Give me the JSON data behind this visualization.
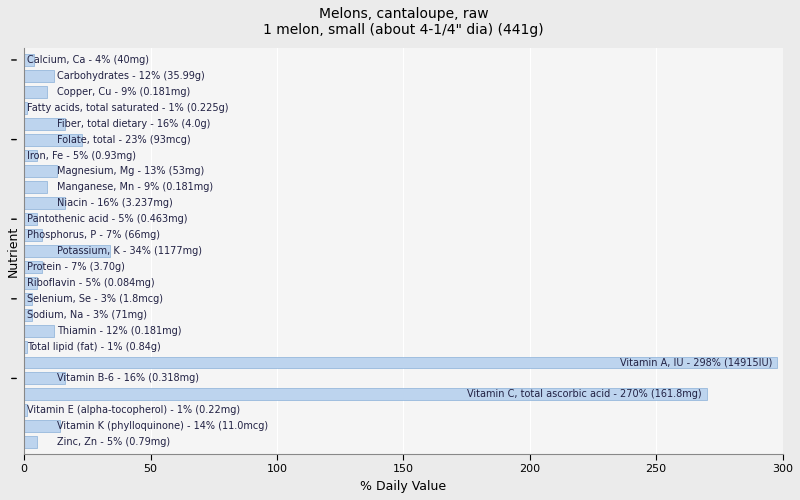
{
  "title": "Melons, cantaloupe, raw\n1 melon, small (about 4-1/4\" dia) (441g)",
  "xlabel": "% Daily Value",
  "ylabel": "Nutrient",
  "xlim": [
    0,
    300
  ],
  "xticks": [
    0,
    50,
    100,
    150,
    200,
    250,
    300
  ],
  "background_color": "#ebebeb",
  "plot_bg_color": "#f5f5f5",
  "bar_color": "#bdd4ee",
  "bar_edge_color": "#8ab0d8",
  "text_color": "#222244",
  "bar_height": 0.75,
  "nutrients": [
    {
      "label": "Calcium, Ca - 4% (40mg)",
      "value": 4,
      "indent": 0
    },
    {
      "label": "Carbohydrates - 12% (35.99g)",
      "value": 12,
      "indent": 1
    },
    {
      "label": "Copper, Cu - 9% (0.181mg)",
      "value": 9,
      "indent": 1
    },
    {
      "label": "Fatty acids, total saturated - 1% (0.225g)",
      "value": 1,
      "indent": 0
    },
    {
      "label": "Fiber, total dietary - 16% (4.0g)",
      "value": 16,
      "indent": 1
    },
    {
      "label": "Folate, total - 23% (93mcg)",
      "value": 23,
      "indent": 1
    },
    {
      "label": "Iron, Fe - 5% (0.93mg)",
      "value": 5,
      "indent": 0
    },
    {
      "label": "Magnesium, Mg - 13% (53mg)",
      "value": 13,
      "indent": 1
    },
    {
      "label": "Manganese, Mn - 9% (0.181mg)",
      "value": 9,
      "indent": 1
    },
    {
      "label": "Niacin - 16% (3.237mg)",
      "value": 16,
      "indent": 1
    },
    {
      "label": "Pantothenic acid - 5% (0.463mg)",
      "value": 5,
      "indent": 0
    },
    {
      "label": "Phosphorus, P - 7% (66mg)",
      "value": 7,
      "indent": 0
    },
    {
      "label": "Potassium, K - 34% (1177mg)",
      "value": 34,
      "indent": 1
    },
    {
      "label": "Protein - 7% (3.70g)",
      "value": 7,
      "indent": 0
    },
    {
      "label": "Riboflavin - 5% (0.084mg)",
      "value": 5,
      "indent": 0
    },
    {
      "label": "Selenium, Se - 3% (1.8mcg)",
      "value": 3,
      "indent": 0
    },
    {
      "label": "Sodium, Na - 3% (71mg)",
      "value": 3,
      "indent": 0
    },
    {
      "label": "Thiamin - 12% (0.181mg)",
      "value": 12,
      "indent": 1
    },
    {
      "label": "Total lipid (fat) - 1% (0.84g)",
      "value": 1,
      "indent": 0
    },
    {
      "label": "Vitamin A, IU - 298% (14915IU)",
      "value": 298,
      "indent": 0
    },
    {
      "label": "Vitamin B-6 - 16% (0.318mg)",
      "value": 16,
      "indent": 1
    },
    {
      "label": "Vitamin C, total ascorbic acid - 270% (161.8mg)",
      "value": 270,
      "indent": 0
    },
    {
      "label": "Vitamin E (alpha-tocopherol) - 1% (0.22mg)",
      "value": 1,
      "indent": 0
    },
    {
      "label": "Vitamin K (phylloquinone) - 14% (11.0mcg)",
      "value": 14,
      "indent": 1
    },
    {
      "label": "Zinc, Zn - 5% (0.79mg)",
      "value": 5,
      "indent": 1
    }
  ]
}
